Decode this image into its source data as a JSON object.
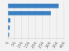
{
  "chart_data": {
    "type": "bar",
    "orientation": "horizontal",
    "categories": [
      null,
      null,
      null,
      null,
      null
    ],
    "values": [
      360,
      305,
      18,
      14,
      9
    ],
    "color": "#3a7fc1",
    "xlim": [
      0,
      400
    ],
    "xticks": [
      0,
      50,
      100,
      150,
      200,
      250,
      300,
      350,
      400
    ],
    "grid": true,
    "tick_labels": "x"
  }
}
